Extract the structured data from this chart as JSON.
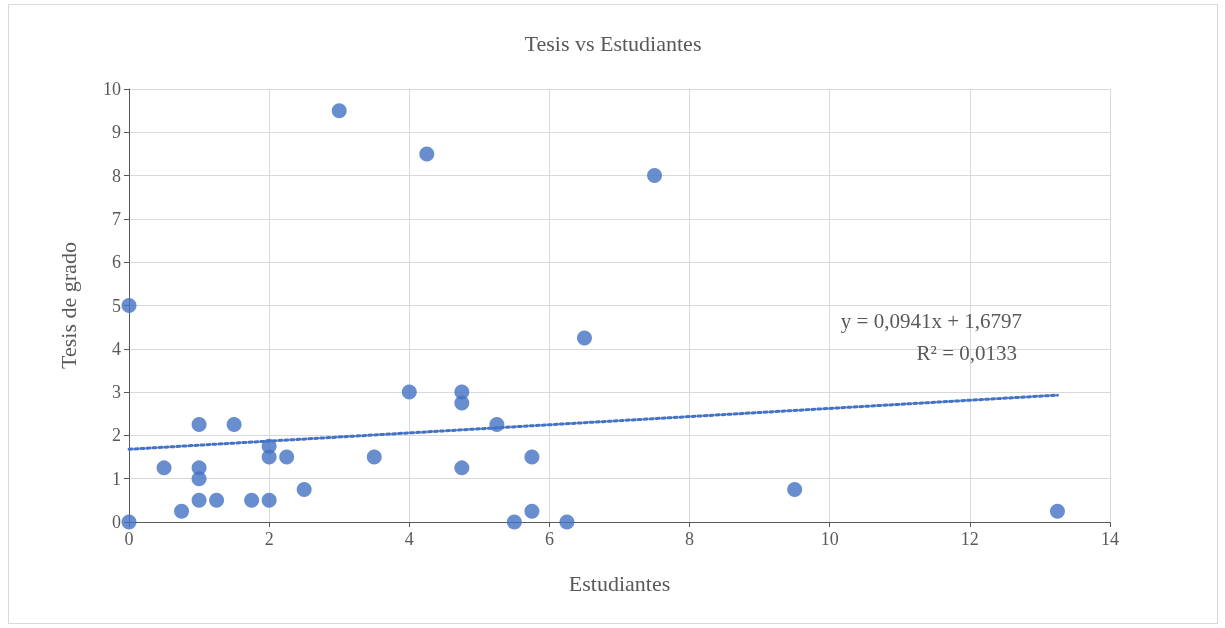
{
  "chart_data": {
    "type": "scatter",
    "title": "Tesis vs Estudiantes",
    "xlabel": "Estudiantes",
    "ylabel": "Tesis de grado",
    "annotations": [
      "y = 0,0941x + 1,6797",
      "R² = 0,0133"
    ],
    "xlim": [
      0,
      14
    ],
    "xticks": [
      0,
      2,
      4,
      6,
      8,
      10,
      12,
      14
    ],
    "ylim": [
      0,
      10
    ],
    "yticks": [
      0,
      1,
      2,
      3,
      4,
      5,
      6,
      7,
      8,
      9,
      10
    ],
    "grid": true,
    "marker": "circle",
    "series": [
      {
        "color": "#4472c4",
        "x": [
          0,
          0,
          0.5,
          0.75,
          1,
          1,
          1,
          1,
          1.25,
          1.5,
          1.75,
          2,
          2,
          2,
          2.25,
          2.5,
          3,
          3.5,
          4,
          4.25,
          4.75,
          4.75,
          4.75,
          5.25,
          5.5,
          5.75,
          5.75,
          6.25,
          6.5,
          7.5,
          9.5,
          13.25
        ],
        "values": [
          0,
          5,
          1.25,
          0.25,
          2.25,
          1.25,
          1,
          0.5,
          0.5,
          2.25,
          0.5,
          1.75,
          1.5,
          0.5,
          1.5,
          0.75,
          9.5,
          1.5,
          3,
          8.5,
          3,
          2.75,
          1.25,
          2.25,
          0,
          1.5,
          0.25,
          0,
          4.25,
          8,
          0.75,
          0.25
        ]
      },
      {
        "type": "line",
        "color": "#4472c4",
        "line_style": "dotted",
        "marker": "none",
        "x": [
          0,
          13.25
        ],
        "values": [
          1.68,
          2.93
        ]
      }
    ]
  }
}
